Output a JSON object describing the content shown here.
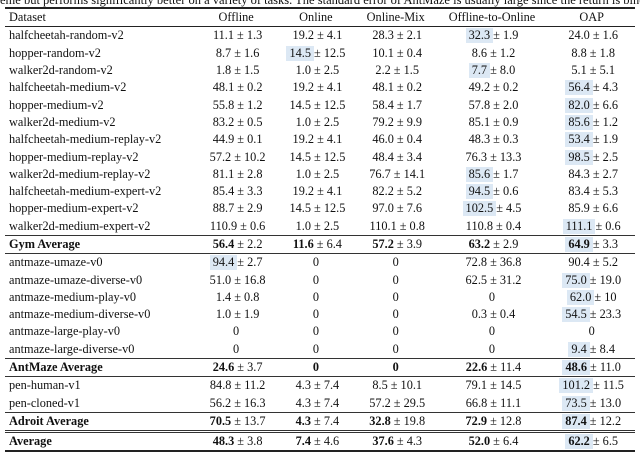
{
  "caption": "eme but performs significantly better on a variety of tasks. The standard error of AntMaze is usually large since the return is bino",
  "headers": [
    "Dataset",
    "Offline",
    "Online",
    "Online-Mix",
    "Offline-to-Online",
    "OAP"
  ],
  "highlight_color": "#dce8f4",
  "rows": [
    {
      "name": "halfcheetah-random-v2",
      "cells": [
        {
          "m": "11.1",
          "s": "1.3"
        },
        {
          "m": "19.2",
          "s": "4.1"
        },
        {
          "m": "28.3",
          "s": "2.1"
        },
        {
          "m": "32.3",
          "s": "1.9",
          "hl": true
        },
        {
          "m": "24.0",
          "s": "1.6"
        }
      ]
    },
    {
      "name": "hopper-random-v2",
      "cells": [
        {
          "m": "8.7",
          "s": "1.6"
        },
        {
          "m": "14.5",
          "s": "12.5",
          "hl": true
        },
        {
          "m": "10.1",
          "s": "0.4"
        },
        {
          "m": "8.6",
          "s": "1.2"
        },
        {
          "m": "8.8",
          "s": "1.8"
        }
      ]
    },
    {
      "name": "walker2d-random-v2",
      "cells": [
        {
          "m": "1.8",
          "s": "1.5"
        },
        {
          "m": "1.0",
          "s": "2.5"
        },
        {
          "m": "2.2",
          "s": "1.5"
        },
        {
          "m": "7.7",
          "s": "8.0",
          "hl": true
        },
        {
          "m": "5.1",
          "s": "5.1"
        }
      ]
    },
    {
      "name": "halfcheetah-medium-v2",
      "cells": [
        {
          "m": "48.1",
          "s": "0.2"
        },
        {
          "m": "19.2",
          "s": "4.1"
        },
        {
          "m": "48.1",
          "s": "0.2"
        },
        {
          "m": "49.2",
          "s": "0.2"
        },
        {
          "m": "56.4",
          "s": "4.3",
          "hl": true
        }
      ]
    },
    {
      "name": "hopper-medium-v2",
      "cells": [
        {
          "m": "55.8",
          "s": "1.2"
        },
        {
          "m": "14.5",
          "s": "12.5"
        },
        {
          "m": "58.4",
          "s": "1.7"
        },
        {
          "m": "57.8",
          "s": "2.0"
        },
        {
          "m": "82.0",
          "s": "6.6",
          "hl": true
        }
      ]
    },
    {
      "name": "walker2d-medium-v2",
      "cells": [
        {
          "m": "83.2",
          "s": "0.5"
        },
        {
          "m": "1.0",
          "s": "2.5"
        },
        {
          "m": "79.2",
          "s": "9.9"
        },
        {
          "m": "85.1",
          "s": "0.9"
        },
        {
          "m": "85.6",
          "s": "1.2",
          "hl": true
        }
      ]
    },
    {
      "name": "halfcheetah-medium-replay-v2",
      "cells": [
        {
          "m": "44.9",
          "s": "0.1"
        },
        {
          "m": "19.2",
          "s": "4.1"
        },
        {
          "m": "46.0",
          "s": "0.4"
        },
        {
          "m": "48.3",
          "s": "0.3"
        },
        {
          "m": "53.4",
          "s": "1.9",
          "hl": true
        }
      ]
    },
    {
      "name": "hopper-medium-replay-v2",
      "cells": [
        {
          "m": "57.2",
          "s": "10.2"
        },
        {
          "m": "14.5",
          "s": "12.5"
        },
        {
          "m": "48.4",
          "s": "3.4"
        },
        {
          "m": "76.3",
          "s": "13.3"
        },
        {
          "m": "98.5",
          "s": "2.5",
          "hl": true
        }
      ]
    },
    {
      "name": "walker2d-medium-replay-v2",
      "cells": [
        {
          "m": "81.1",
          "s": "2.8"
        },
        {
          "m": "1.0",
          "s": "2.5"
        },
        {
          "m": "76.7",
          "s": "14.1"
        },
        {
          "m": "85.6",
          "s": "1.7",
          "hl": true
        },
        {
          "m": "84.3",
          "s": "2.7"
        }
      ]
    },
    {
      "name": "halfcheetah-medium-expert-v2",
      "cells": [
        {
          "m": "85.4",
          "s": "3.3"
        },
        {
          "m": "19.2",
          "s": "4.1"
        },
        {
          "m": "82.2",
          "s": "5.2"
        },
        {
          "m": "94.5",
          "s": "0.6",
          "hl": true
        },
        {
          "m": "83.4",
          "s": "5.3"
        }
      ]
    },
    {
      "name": "hopper-medium-expert-v2",
      "cells": [
        {
          "m": "88.7",
          "s": "2.9"
        },
        {
          "m": "14.5",
          "s": "12.5"
        },
        {
          "m": "97.0",
          "s": "7.6"
        },
        {
          "m": "102.5",
          "s": "4.5",
          "hl": true
        },
        {
          "m": "85.9",
          "s": "6.6"
        }
      ]
    },
    {
      "name": "walker2d-medium-expert-v2",
      "cells": [
        {
          "m": "110.9",
          "s": "0.6"
        },
        {
          "m": "1.0",
          "s": "2.5"
        },
        {
          "m": "110.1",
          "s": "0.8"
        },
        {
          "m": "110.8",
          "s": "0.4"
        },
        {
          "m": "111.1",
          "s": "0.6",
          "hl": true
        }
      ]
    },
    {
      "name": "Gym Average",
      "type": "avg",
      "cells": [
        {
          "m": "56.4",
          "s": "2.2",
          "b": true
        },
        {
          "m": "11.6",
          "s": "6.4",
          "b": true
        },
        {
          "m": "57.2",
          "s": "3.9",
          "b": true
        },
        {
          "m": "63.2",
          "s": "2.9",
          "b": true
        },
        {
          "m": "64.9",
          "s": "3.3",
          "b": true,
          "hl": true
        }
      ]
    },
    {
      "name": "antmaze-umaze-v0",
      "cells": [
        {
          "m": "94.4",
          "s": "2.7",
          "hl": true
        },
        {
          "m": "0"
        },
        {
          "m": "0"
        },
        {
          "m": "72.8",
          "s": "36.8"
        },
        {
          "m": "90.4",
          "s": "5.2"
        }
      ]
    },
    {
      "name": "antmaze-umaze-diverse-v0",
      "cells": [
        {
          "m": "51.0",
          "s": "16.8"
        },
        {
          "m": "0"
        },
        {
          "m": "0"
        },
        {
          "m": "62.5",
          "s": "31.2"
        },
        {
          "m": "75.0",
          "s": "19.0",
          "hl": true
        }
      ]
    },
    {
      "name": "antmaze-medium-play-v0",
      "cells": [
        {
          "m": "1.4",
          "s": "0.8"
        },
        {
          "m": "0"
        },
        {
          "m": "0"
        },
        {
          "m": "0"
        },
        {
          "m": "62.0",
          "s": "10",
          "hl": true
        }
      ]
    },
    {
      "name": "antmaze-medium-diverse-v0",
      "cells": [
        {
          "m": "1.0",
          "s": "1.9"
        },
        {
          "m": "0"
        },
        {
          "m": "0"
        },
        {
          "m": "0.3",
          "s": "0.4"
        },
        {
          "m": "54.5",
          "s": "23.3",
          "hl": true
        }
      ]
    },
    {
      "name": "antmaze-large-play-v0",
      "cells": [
        {
          "m": "0"
        },
        {
          "m": "0"
        },
        {
          "m": "0"
        },
        {
          "m": "0"
        },
        {
          "m": "0"
        }
      ]
    },
    {
      "name": "antmaze-large-diverse-v0",
      "cells": [
        {
          "m": "0"
        },
        {
          "m": "0"
        },
        {
          "m": "0"
        },
        {
          "m": "0"
        },
        {
          "m": "9.4",
          "s": "8.4",
          "hl": true
        }
      ]
    },
    {
      "name": "AntMaze Average",
      "type": "avg",
      "cells": [
        {
          "m": "24.6",
          "s": "3.7",
          "b": true
        },
        {
          "m": "0",
          "b": true
        },
        {
          "m": "0",
          "b": true
        },
        {
          "m": "22.6",
          "s": "11.4",
          "b": true
        },
        {
          "m": "48.6",
          "s": "11.0",
          "b": true,
          "hl": true
        }
      ]
    },
    {
      "name": "pen-human-v1",
      "cells": [
        {
          "m": "84.8",
          "s": "11.2"
        },
        {
          "m": "4.3",
          "s": "7.4"
        },
        {
          "m": "8.5",
          "s": "10.1"
        },
        {
          "m": "79.1",
          "s": "14.5"
        },
        {
          "m": "101.2",
          "s": "11.5",
          "hl": true
        }
      ]
    },
    {
      "name": "pen-cloned-v1",
      "cells": [
        {
          "m": "56.2",
          "s": "16.3"
        },
        {
          "m": "4.3",
          "s": "7.4"
        },
        {
          "m": "57.2",
          "s": "29.5"
        },
        {
          "m": "66.8",
          "s": "11.1"
        },
        {
          "m": "73.5",
          "s": "13.0",
          "hl": true
        }
      ]
    },
    {
      "name": "Adroit Average",
      "type": "avg",
      "cells": [
        {
          "m": "70.5",
          "s": "13.7",
          "b": true
        },
        {
          "m": "4.3",
          "s": "7.4",
          "b": true
        },
        {
          "m": "32.8",
          "s": "19.8",
          "b": true
        },
        {
          "m": "72.9",
          "s": "12.8",
          "b": true
        },
        {
          "m": "87.4",
          "s": "12.2",
          "b": true,
          "hl": true
        }
      ]
    },
    {
      "name": "Average",
      "type": "grand",
      "cells": [
        {
          "m": "48.3",
          "s": "3.8",
          "b": true
        },
        {
          "m": "7.4",
          "s": "4.6",
          "b": true
        },
        {
          "m": "37.6",
          "s": "4.3",
          "b": true
        },
        {
          "m": "52.0",
          "s": "6.4",
          "b": true
        },
        {
          "m": "62.2",
          "s": "6.5",
          "b": true,
          "hl": true
        }
      ]
    }
  ]
}
